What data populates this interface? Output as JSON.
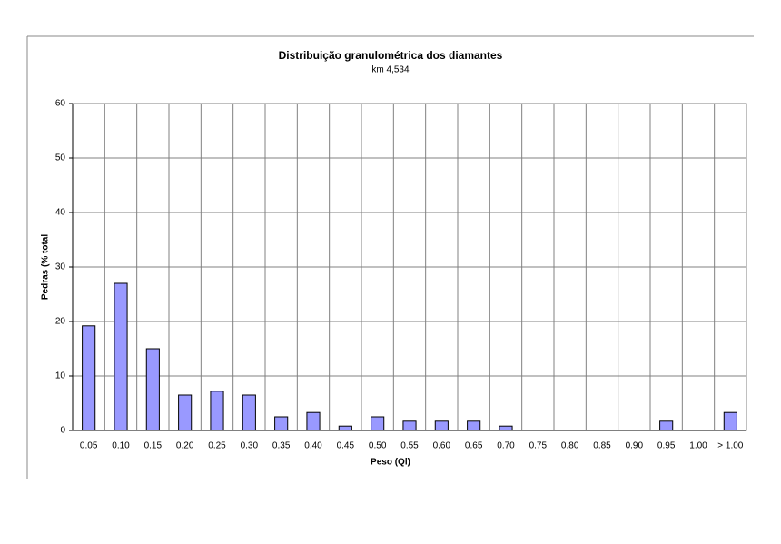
{
  "chart_data": {
    "type": "bar",
    "title": "Distribuição granulométrica dos diamantes",
    "subtitle": "km 4,534",
    "x_label": "Peso (Ql)",
    "y_label": "Pedras (% total",
    "categories": [
      "0.05",
      "0.10",
      "0.15",
      "0.20",
      "0.25",
      "0.30",
      "0.35",
      "0.40",
      "0.45",
      "0.50",
      "0.55",
      "0.60",
      "0.65",
      "0.70",
      "0.75",
      "0.80",
      "0.85",
      "0.90",
      "0.95",
      "1.00",
      "> 1.00"
    ],
    "values": [
      19.2,
      27,
      15,
      6.5,
      7.2,
      6.5,
      2.5,
      3.3,
      0.8,
      2.5,
      1.7,
      1.7,
      1.7,
      0.8,
      0,
      0,
      0,
      0,
      1.7,
      0,
      3.3
    ],
    "color": "#9999ff",
    "ylim": [
      0,
      60
    ],
    "yticks": [
      0,
      10,
      20,
      30,
      40,
      50,
      60
    ],
    "grid": true
  }
}
